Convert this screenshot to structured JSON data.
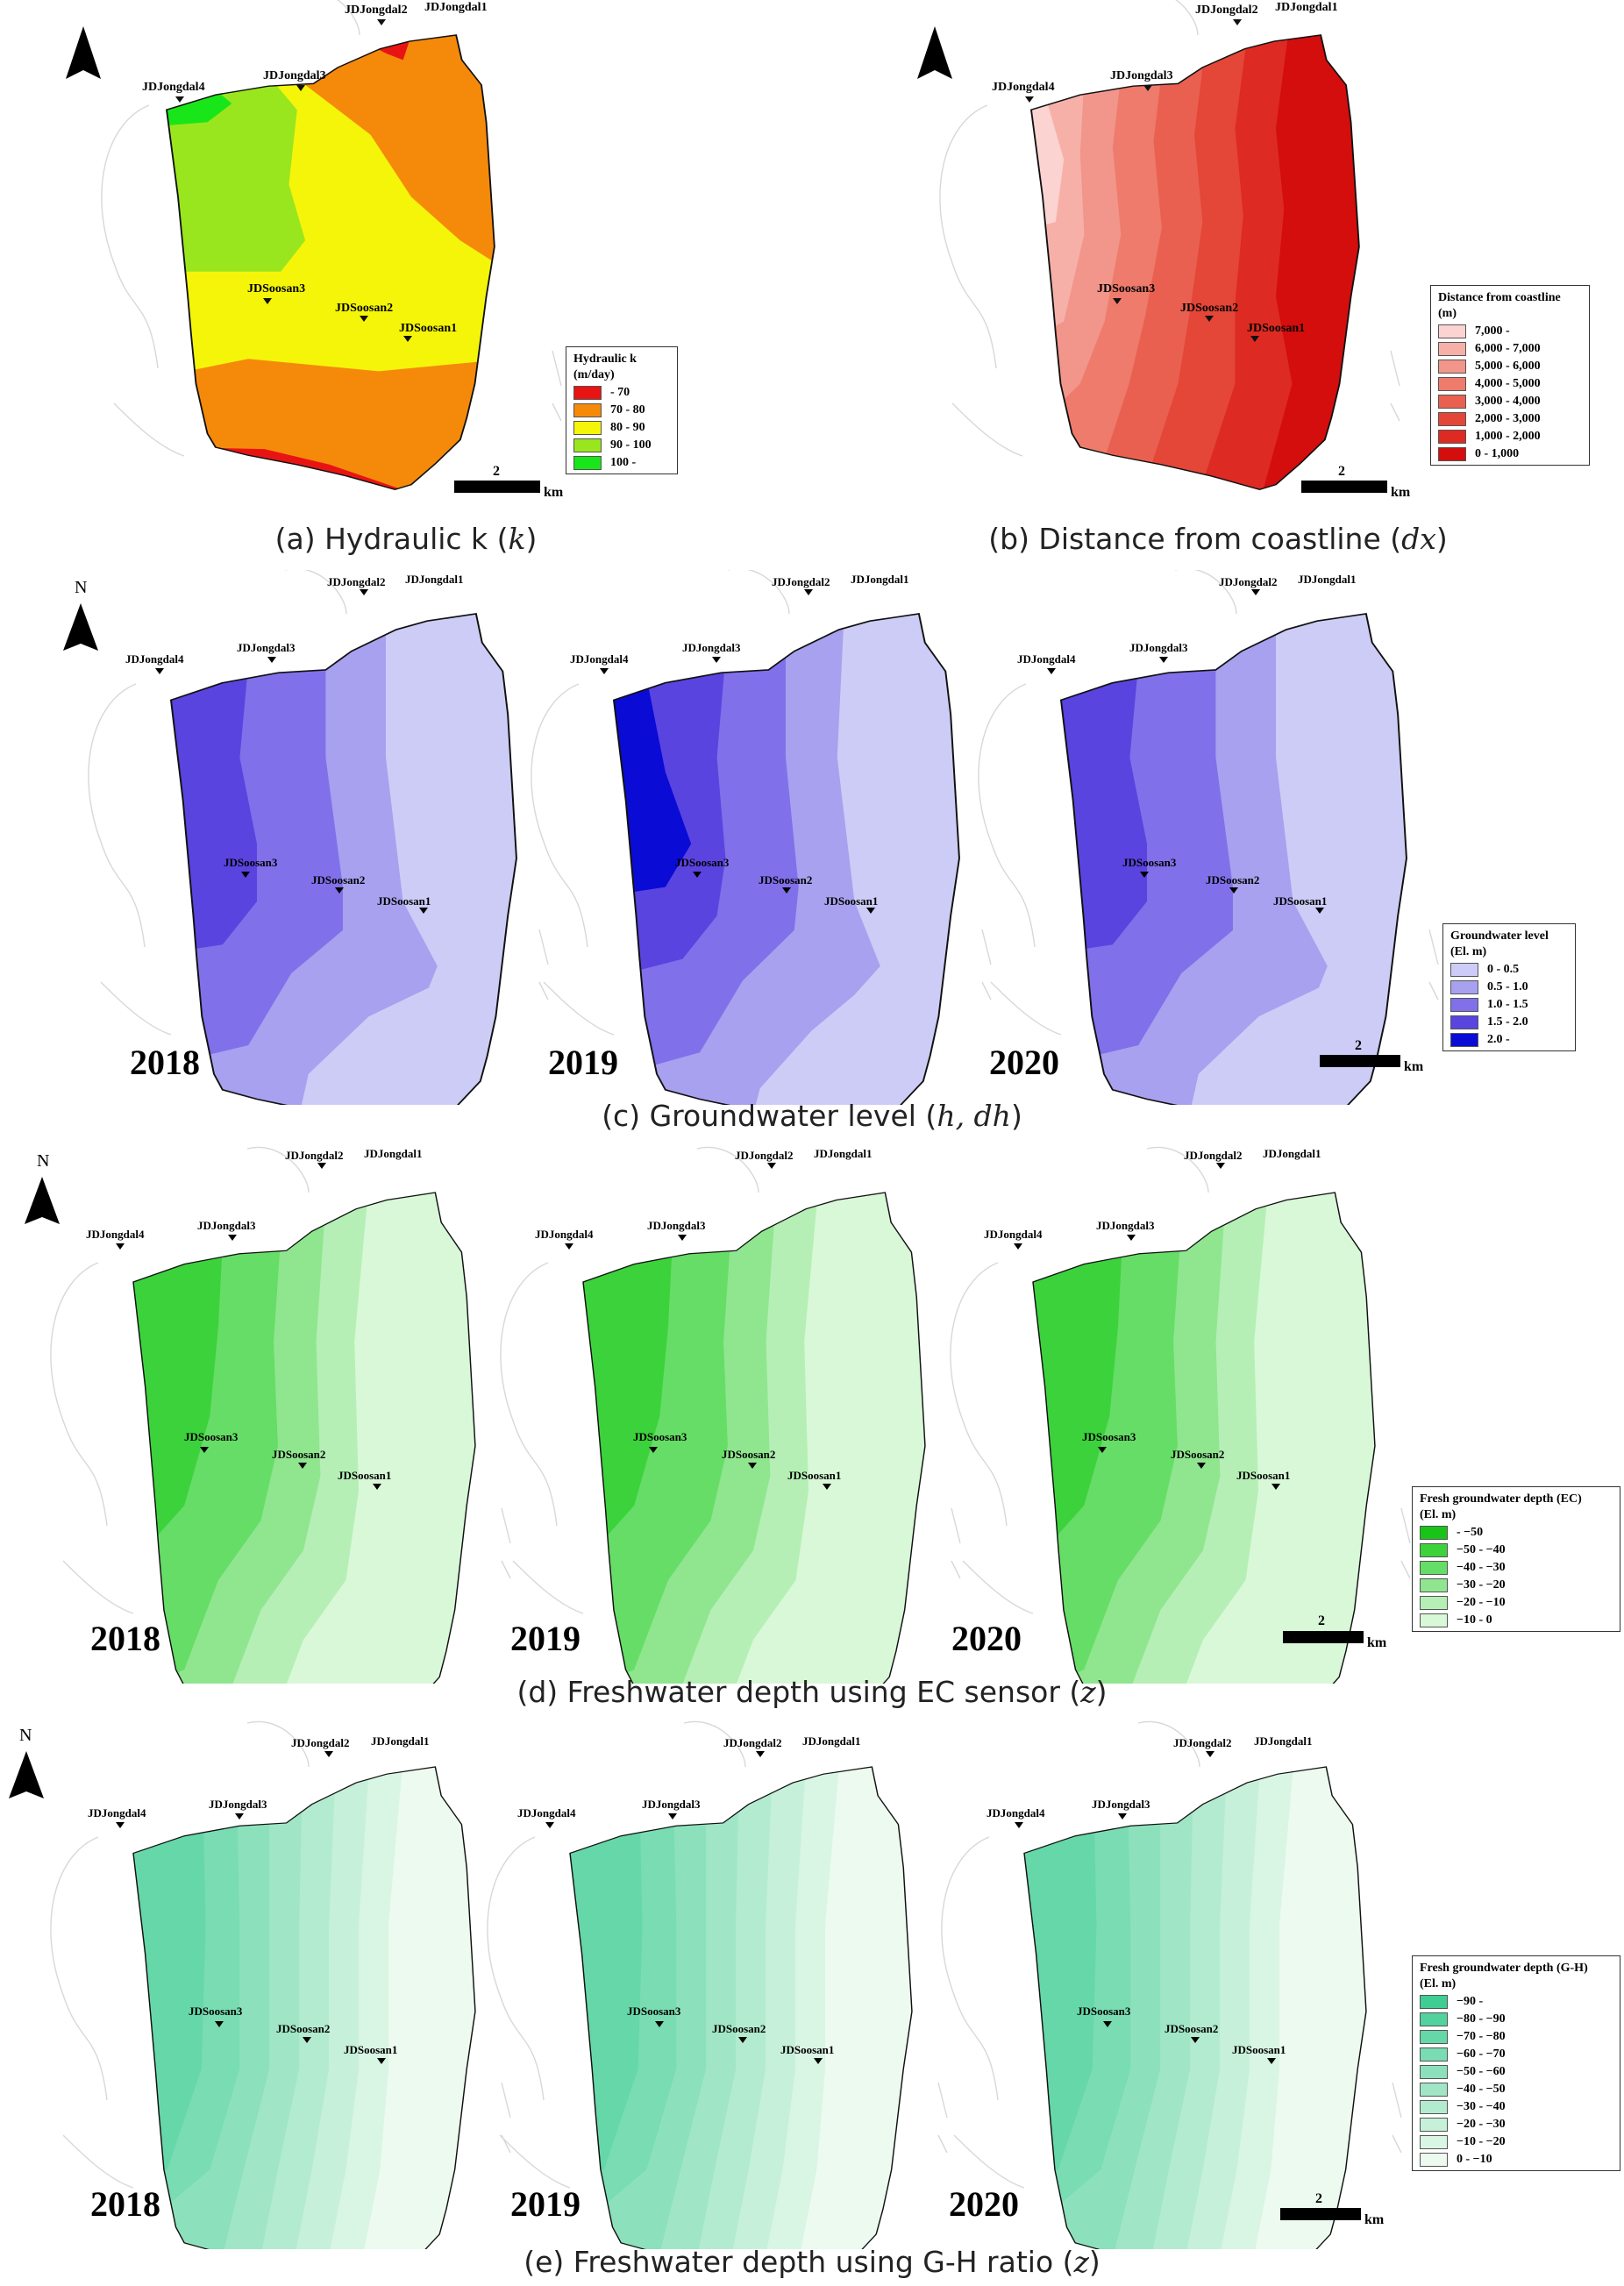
{
  "stations": {
    "jongdal1": "JDJongdal1",
    "jongdal2": "JDJongdal2",
    "jongdal3": "JDJongdal3",
    "jongdal4": "JDJongdal4",
    "soosan1": "JDSoosan1",
    "soosan2": "JDSoosan2",
    "soosan3": "JDSoosan3"
  },
  "north_label": "N",
  "scale_value": "2",
  "scale_unit": "km",
  "years": [
    "2018",
    "2019",
    "2020"
  ],
  "panels": {
    "a": {
      "caption_prefix": "(a) Hydraulic k (",
      "caption_var": "k",
      "caption_suffix": ")",
      "legend_title": "Hydraulic k",
      "legend_unit": "(m/day)",
      "legend": [
        {
          "label": " - 70",
          "color": "#e81414"
        },
        {
          "label": "70 - 80",
          "color": "#f58a0a"
        },
        {
          "label": "80 - 90",
          "color": "#f5f50a"
        },
        {
          "label": "90 - 100",
          "color": "#9ae61e"
        },
        {
          "label": "100 -",
          "color": "#19e619"
        }
      ]
    },
    "b": {
      "caption_prefix": "(b) Distance from coastline (",
      "caption_var": "dx",
      "caption_suffix": ")",
      "legend_title": "Distance from coastline",
      "legend_unit": "(m)",
      "legend": [
        {
          "label": "7,000 -",
          "color": "#fbd3d0"
        },
        {
          "label": "6,000 - 7,000",
          "color": "#f6b0a8"
        },
        {
          "label": "5,000 - 6,000",
          "color": "#f2958a"
        },
        {
          "label": "4,000 - 5,000",
          "color": "#ee7b6b"
        },
        {
          "label": "3,000 - 4,000",
          "color": "#ea6050"
        },
        {
          "label": "2,000 - 3,000",
          "color": "#e44638"
        },
        {
          "label": "1,000 - 2,000",
          "color": "#dd2a22"
        },
        {
          "label": "0 - 1,000",
          "color": "#d40d0d"
        }
      ]
    },
    "c": {
      "caption_prefix": "(c) Groundwater level (",
      "caption_var": "h, dh",
      "caption_suffix": ")",
      "legend_title": "Groundwater level",
      "legend_unit": "(El. m)",
      "legend": [
        {
          "label": "0 - 0.5",
          "color": "#ccccf7"
        },
        {
          "label": "0.5 - 1.0",
          "color": "#a7a1ef"
        },
        {
          "label": "1.0 - 1.5",
          "color": "#8070ea"
        },
        {
          "label": "1.5 - 2.0",
          "color": "#5944e0"
        },
        {
          "label": "2.0 -",
          "color": "#0b0bd6"
        }
      ]
    },
    "d": {
      "caption_prefix": "(d) Freshwater depth using EC sensor (",
      "caption_var": "z",
      "caption_suffix": ")",
      "legend_title": "Fresh groundwater depth (EC)",
      "legend_unit": "(El. m)",
      "legend": [
        {
          "label": " - −50",
          "color": "#19c419"
        },
        {
          "label": "−50 - −40",
          "color": "#3cd23c"
        },
        {
          "label": "−40 - −30",
          "color": "#66dd66"
        },
        {
          "label": "−30 - −20",
          "color": "#8fe68f"
        },
        {
          "label": "−20 - −10",
          "color": "#b5efb5"
        },
        {
          "label": "−10 - 0",
          "color": "#d8f8d8"
        }
      ]
    },
    "e": {
      "caption_prefix": "(e) Freshwater depth using G-H ratio (",
      "caption_var": "z",
      "caption_suffix": ")",
      "legend_title": "Fresh groundwater depth (G-H)",
      "legend_unit": "(El. m)",
      "legend": [
        {
          "label": "−90 -",
          "color": "#3fcd94"
        },
        {
          "label": "−80 - −90",
          "color": "#52d29e"
        },
        {
          "label": "−70 - −80",
          "color": "#66d7a8"
        },
        {
          "label": "−60 - −70",
          "color": "#79dcb2"
        },
        {
          "label": "−50 - −60",
          "color": "#8ce1bc"
        },
        {
          "label": "−40 - −50",
          "color": "#a0e6c6"
        },
        {
          "label": "−30 - −40",
          "color": "#b3ebd0"
        },
        {
          "label": "−20 - −30",
          "color": "#c6f0da"
        },
        {
          "label": "−10 - −20",
          "color": "#d9f5e4"
        },
        {
          "label": "0 - −10",
          "color": "#ecfaef"
        }
      ]
    }
  }
}
